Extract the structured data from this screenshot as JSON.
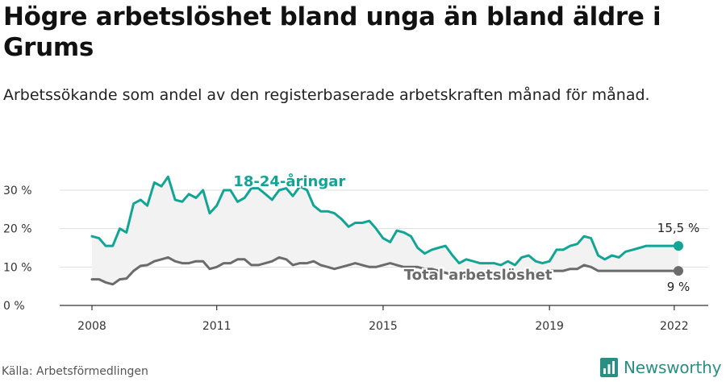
{
  "title": "Högre arbetslöshet bland unga än bland äldre i Grums",
  "subtitle": "Arbetssökande som andel av den registerbaserade arbetskraften månad för månad.",
  "source": "Källa: Arbetsförmedlingen",
  "brand": {
    "name": "Newsworthy",
    "icon": "newsworthy-logo-icon",
    "color": "#2a8f83"
  },
  "colors": {
    "youth": "#12a595",
    "total": "#6b6b6b",
    "band": "#f2f2f2",
    "grid": "#dddddd"
  },
  "chart_data": {
    "type": "line",
    "x_unit": "year",
    "ylim": [
      0,
      32
    ],
    "yticks": [
      0,
      10,
      20,
      30
    ],
    "ytick_labels": [
      "0 %",
      "10 %",
      "20 %",
      "30 %"
    ],
    "xticks": [
      2008,
      2011,
      2015,
      2019,
      2022
    ],
    "xtick_labels": [
      "2008",
      "2011",
      "2015",
      "2019",
      "2022"
    ],
    "grid": true,
    "series": [
      {
        "name": "18-24-åringar",
        "label": "18-24-åringar",
        "end_label": "15,5 %",
        "x": [
          2008.0,
          2008.17,
          2008.33,
          2008.5,
          2008.67,
          2008.83,
          2009.0,
          2009.17,
          2009.33,
          2009.5,
          2009.67,
          2009.83,
          2010.0,
          2010.17,
          2010.33,
          2010.5,
          2010.67,
          2010.83,
          2011.0,
          2011.17,
          2011.33,
          2011.5,
          2011.67,
          2011.83,
          2012.0,
          2012.17,
          2012.33,
          2012.5,
          2012.67,
          2012.83,
          2013.0,
          2013.17,
          2013.33,
          2013.5,
          2013.67,
          2013.83,
          2014.0,
          2014.17,
          2014.33,
          2014.5,
          2014.67,
          2014.83,
          2015.0,
          2015.17,
          2015.33,
          2015.5,
          2015.67,
          2015.83,
          2016.0,
          2016.17,
          2016.33,
          2016.5,
          2016.67,
          2016.83,
          2017.0,
          2017.17,
          2017.33,
          2017.5,
          2017.67,
          2017.83,
          2018.0,
          2018.17,
          2018.33,
          2018.5,
          2018.67,
          2018.83,
          2019.0,
          2019.17,
          2019.33,
          2019.5,
          2019.67,
          2019.83,
          2020.0,
          2020.17,
          2020.33,
          2020.5,
          2020.67,
          2020.83,
          2021.0,
          2021.17,
          2021.33,
          2021.5,
          2021.67,
          2021.83,
          2022.0,
          2022.1
        ],
        "values": [
          18,
          17.5,
          15.5,
          15.5,
          20,
          19,
          26.5,
          27.5,
          26,
          32,
          31,
          33.5,
          27.5,
          27,
          29,
          28,
          30,
          24,
          26,
          30,
          30,
          27,
          28,
          30.5,
          30.5,
          29,
          27.5,
          30,
          30.5,
          28.5,
          31,
          30,
          26,
          24.5,
          24.5,
          24,
          22.5,
          20.5,
          21.5,
          21.5,
          22,
          20,
          17.5,
          16.5,
          19.5,
          19,
          18,
          15,
          13.5,
          14.5,
          15,
          15.5,
          13,
          11,
          12,
          11.5,
          11,
          11,
          11,
          10.5,
          11.5,
          10.5,
          12.5,
          13,
          11.5,
          11,
          11.5,
          14.5,
          14.5,
          15.5,
          16,
          18,
          17.5,
          13,
          12,
          13,
          12.5,
          14,
          14.5,
          15,
          15.5,
          15.5,
          15.5,
          15.5,
          15.5,
          15.5
        ]
      },
      {
        "name": "Total arbetslöshet",
        "label": "Total arbetslöshet",
        "end_label": "9 %",
        "x": [
          2008.0,
          2008.17,
          2008.33,
          2008.5,
          2008.67,
          2008.83,
          2009.0,
          2009.17,
          2009.33,
          2009.5,
          2009.67,
          2009.83,
          2010.0,
          2010.17,
          2010.33,
          2010.5,
          2010.67,
          2010.83,
          2011.0,
          2011.17,
          2011.33,
          2011.5,
          2011.67,
          2011.83,
          2012.0,
          2012.17,
          2012.33,
          2012.5,
          2012.67,
          2012.83,
          2013.0,
          2013.17,
          2013.33,
          2013.5,
          2013.67,
          2013.83,
          2014.0,
          2014.17,
          2014.33,
          2014.5,
          2014.67,
          2014.83,
          2015.0,
          2015.17,
          2015.33,
          2015.5,
          2015.67,
          2015.83,
          2016.0,
          2016.17,
          2016.33,
          2016.5,
          2016.67,
          2016.83,
          2017.0,
          2017.17,
          2017.33,
          2017.5,
          2017.67,
          2017.83,
          2018.0,
          2018.17,
          2018.33,
          2018.5,
          2018.67,
          2018.83,
          2019.0,
          2019.17,
          2019.33,
          2019.5,
          2019.67,
          2019.83,
          2020.0,
          2020.17,
          2020.33,
          2020.5,
          2020.67,
          2020.83,
          2021.0,
          2021.17,
          2021.33,
          2021.5,
          2021.67,
          2021.83,
          2022.0,
          2022.1
        ],
        "values": [
          6.8,
          6.8,
          6,
          5.5,
          6.8,
          7,
          9,
          10.3,
          10.5,
          11.5,
          12,
          12.5,
          11.5,
          11,
          11,
          11.5,
          11.5,
          9.5,
          10,
          11,
          11,
          12,
          12,
          10.5,
          10.5,
          11,
          11.5,
          12.5,
          12,
          10.5,
          11,
          11,
          11.5,
          10.5,
          10,
          9.5,
          10,
          10.5,
          11,
          10.5,
          10,
          10,
          10.5,
          11,
          10.5,
          10,
          10,
          10,
          9.5,
          9.5,
          9,
          8.5,
          8,
          7.5,
          7.5,
          7,
          7,
          7,
          7,
          7,
          7,
          7,
          7.5,
          8.5,
          8.5,
          8.5,
          9,
          9,
          9,
          9.5,
          9.5,
          10.5,
          10,
          9,
          9,
          9,
          9,
          9,
          9,
          9,
          9,
          9,
          9,
          9,
          9,
          9
        ]
      }
    ]
  }
}
